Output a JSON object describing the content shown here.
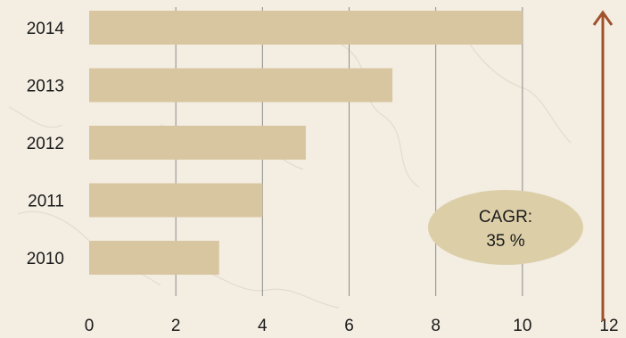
{
  "chart_data": {
    "type": "bar",
    "orientation": "horizontal",
    "categories": [
      "2014",
      "2013",
      "2012",
      "2011",
      "2010"
    ],
    "values": [
      10,
      7,
      5,
      4,
      3
    ],
    "title": "",
    "xlabel": "",
    "ylabel": "",
    "xlim": [
      0,
      12
    ],
    "xticks": [
      "0",
      "2",
      "4",
      "6",
      "8",
      "10",
      "12"
    ],
    "grid": true,
    "colors": {
      "bar": "#d8c6a0",
      "arrow": "#a0522d",
      "gridline": "#8c8c8c",
      "background": "#f3ede2",
      "annotation_fill": "#dccfa8"
    },
    "annotation": {
      "line1": "CAGR:",
      "line2": "35 %"
    },
    "trend_arrow": {
      "direction": "up",
      "icon": "arrow-up-icon"
    }
  }
}
